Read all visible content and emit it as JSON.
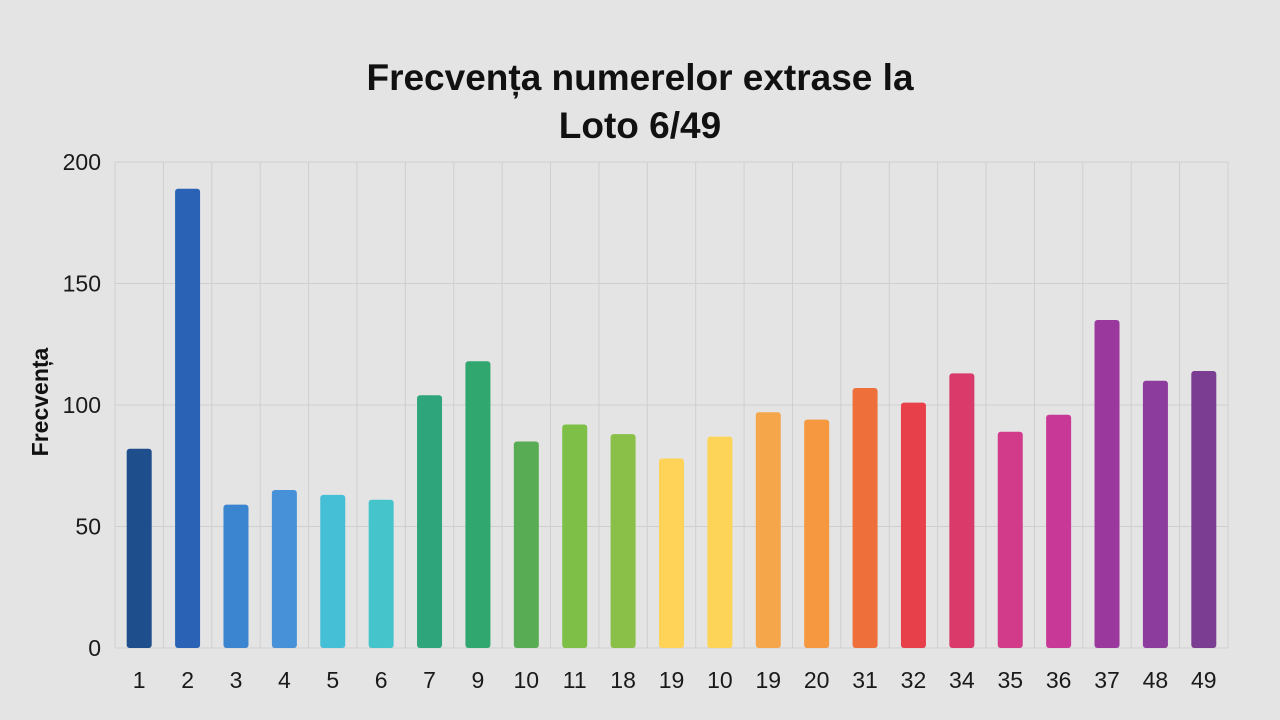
{
  "chart_data": {
    "type": "bar",
    "title_lines": [
      "Frecvența numerelor extrase la",
      "Loto 6/49"
    ],
    "ylabel": "Frecvența",
    "xlabel": "",
    "ylim": [
      0,
      200
    ],
    "yticks": [
      0,
      50,
      100,
      150,
      200
    ],
    "grid": true,
    "legend": "none",
    "categories": [
      "1",
      "2",
      "3",
      "4",
      "5",
      "6",
      "7",
      "9",
      "10",
      "11",
      "18",
      "19",
      "10",
      "19",
      "20",
      "31",
      "32",
      "34",
      "35",
      "36",
      "37",
      "48",
      "49"
    ],
    "values": [
      82,
      189,
      59,
      65,
      63,
      61,
      104,
      118,
      85,
      92,
      88,
      78,
      87,
      97,
      94,
      107,
      101,
      113,
      89,
      96,
      135,
      110,
      114
    ],
    "colors": [
      "#1f4e8c",
      "#2a62b5",
      "#3a84d0",
      "#4691d8",
      "#45bfd6",
      "#45c4cc",
      "#2ea57a",
      "#2fa76e",
      "#58ad54",
      "#7ebf48",
      "#8bc048",
      "#fed358",
      "#fdd458",
      "#f5a64a",
      "#f5983f",
      "#ef6f3b",
      "#e8404a",
      "#d93a6a",
      "#d23a8a",
      "#c83896",
      "#9a389e",
      "#8c3c9c",
      "#7a3d92"
    ]
  }
}
